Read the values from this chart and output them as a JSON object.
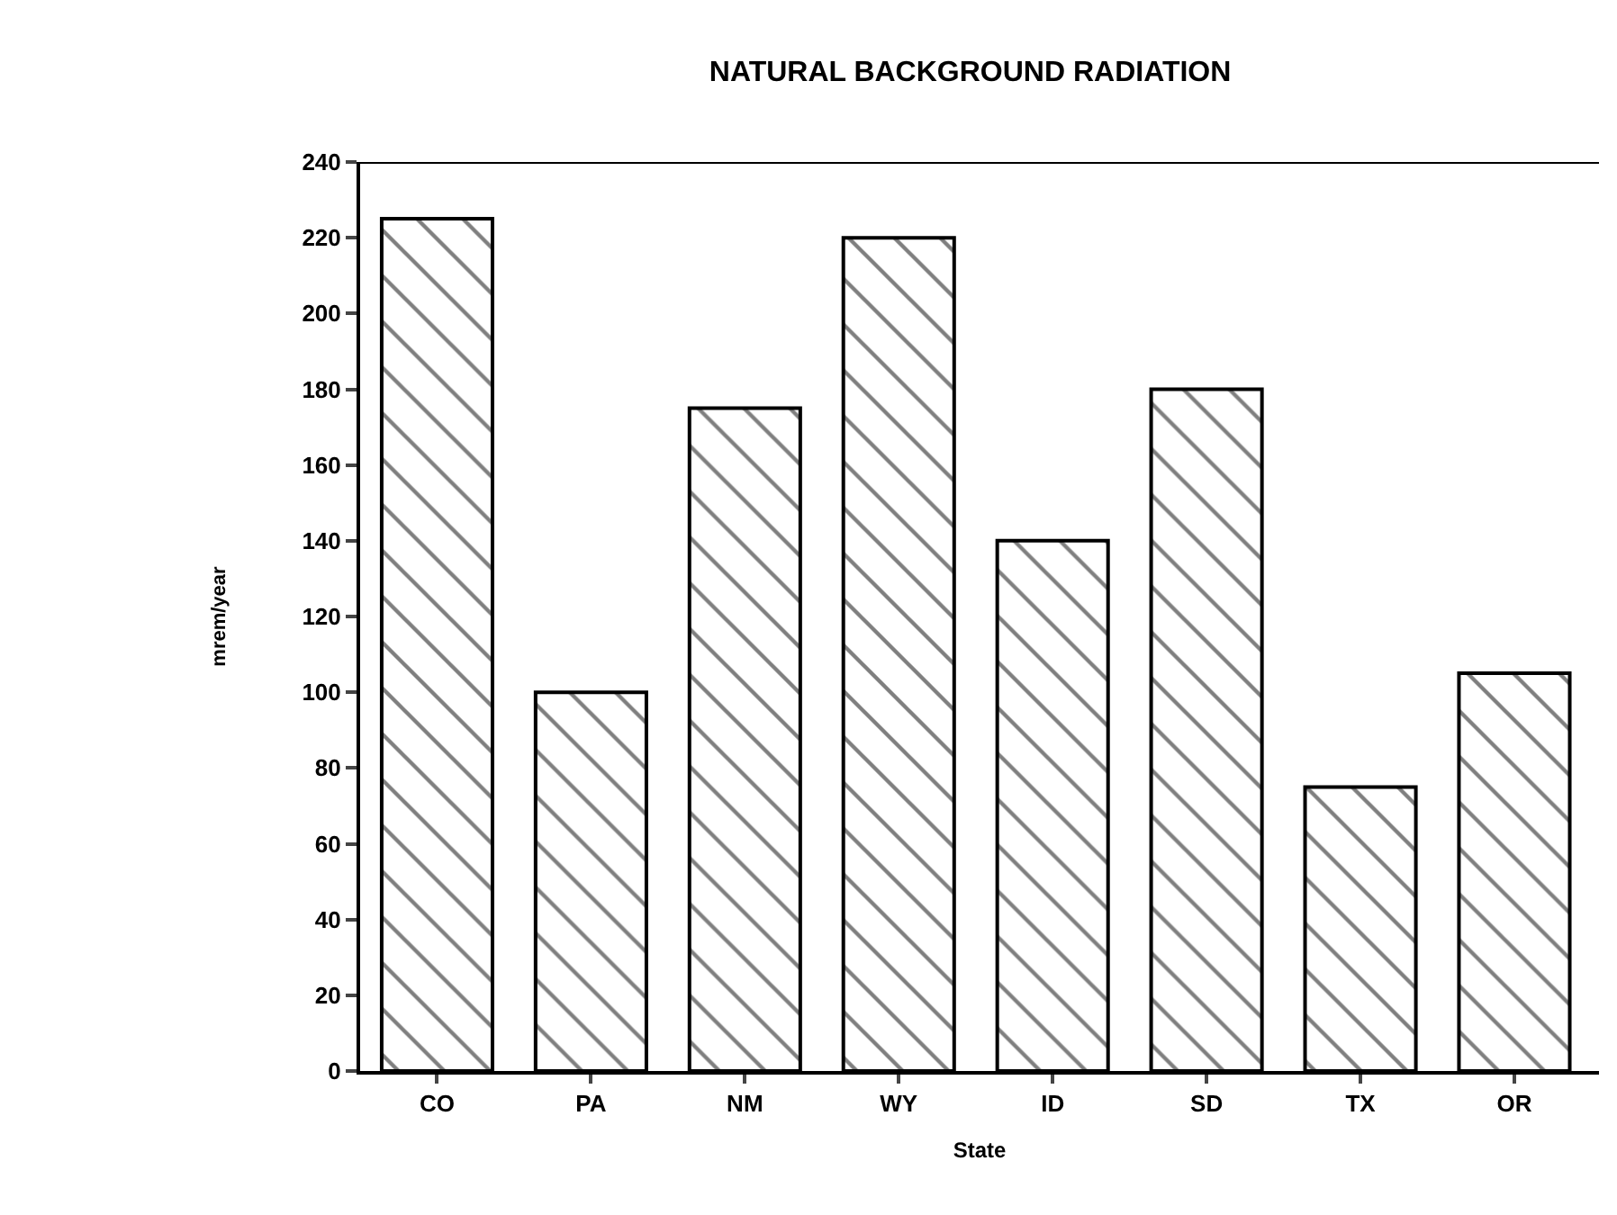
{
  "chart_data": {
    "type": "bar",
    "title": "NATURAL BACKGROUND RADIATION",
    "xlabel": "State",
    "ylabel": "mrem/year",
    "categories": [
      "CO",
      "PA",
      "NM",
      "WY",
      "ID",
      "SD",
      "TX",
      "OR"
    ],
    "values": [
      225,
      100,
      175,
      220,
      140,
      180,
      75,
      105
    ],
    "color": "#000000",
    "ylim": [
      0,
      240
    ],
    "yticks": [
      0,
      20,
      40,
      60,
      80,
      100,
      120,
      140,
      160,
      180,
      200,
      220,
      240
    ]
  }
}
